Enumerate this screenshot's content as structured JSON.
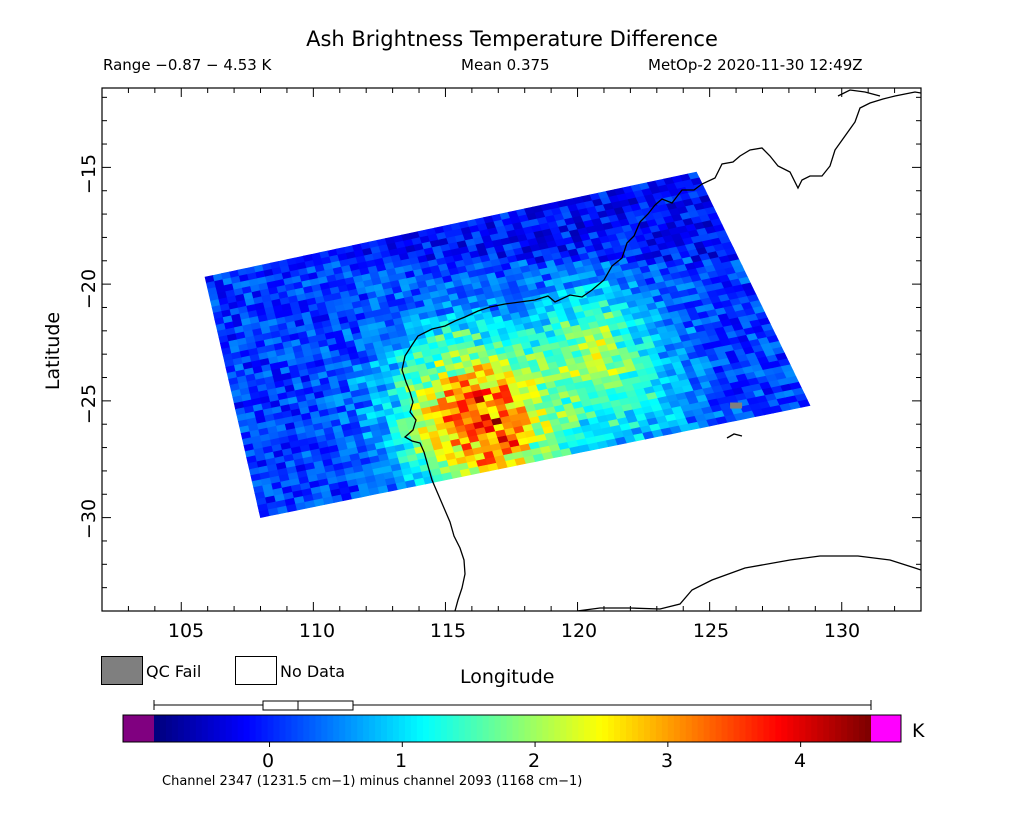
{
  "header": {
    "title": "Ash Brightness Temperature Difference",
    "range": "Range −0.87 − 4.53 K",
    "mean": "Mean 0.375",
    "satellite": "MetOp-2 2020-11-30 12:49Z"
  },
  "axes": {
    "xlabel": "Longitude",
    "ylabel": "Latitude",
    "xticks": [
      "105",
      "110",
      "115",
      "120",
      "125",
      "130"
    ],
    "xtick_values": [
      105,
      110,
      115,
      120,
      125,
      130
    ],
    "yticks": [
      "−15",
      "−20",
      "−25",
      "−30"
    ],
    "ytick_values": [
      -15,
      -20,
      -25,
      -30
    ],
    "xlim": [
      102,
      133
    ],
    "ylim": [
      -34,
      -11.6
    ]
  },
  "legend": {
    "qc_fail": "QC Fail",
    "qc_fail_color": "#7f7f7f",
    "no_data": "No Data",
    "no_data_color": "#ffffff"
  },
  "colorbar": {
    "unit": "K",
    "ticks": [
      "0",
      "1",
      "2",
      "3",
      "4"
    ],
    "tick_values": [
      0,
      1,
      2,
      3,
      4
    ],
    "min": -0.87,
    "max": 4.53,
    "mean": 0.375,
    "under_color": "#800080",
    "over_color": "#ff00ff",
    "caption": "Channel 2347 (1231.5 cm−1) minus channel 2093 (1168 cm−1)"
  },
  "swath": {
    "corners_lonlat": [
      [
        105.9,
        -19.7
      ],
      [
        124.5,
        -15.2
      ],
      [
        128.8,
        -25.2
      ],
      [
        108.0,
        -30.0
      ]
    ],
    "hotspot_centers_lonlat": [
      [
        115.8,
        -25.0
      ],
      [
        121.5,
        -24.5
      ],
      [
        120.5,
        -22.0
      ],
      [
        117.0,
        -27.0
      ]
    ],
    "qc_fail_pixel_lonlat": [
      126.0,
      -25.2
    ]
  },
  "chart_data": {
    "type": "heatmap",
    "title": "Ash Brightness Temperature Difference",
    "xlabel": "Longitude",
    "ylabel": "Latitude",
    "xlim": [
      102,
      133
    ],
    "ylim": [
      -34,
      -11.6
    ],
    "value_range": [
      -0.87,
      4.53
    ],
    "mean": 0.375,
    "unit": "K"
  }
}
